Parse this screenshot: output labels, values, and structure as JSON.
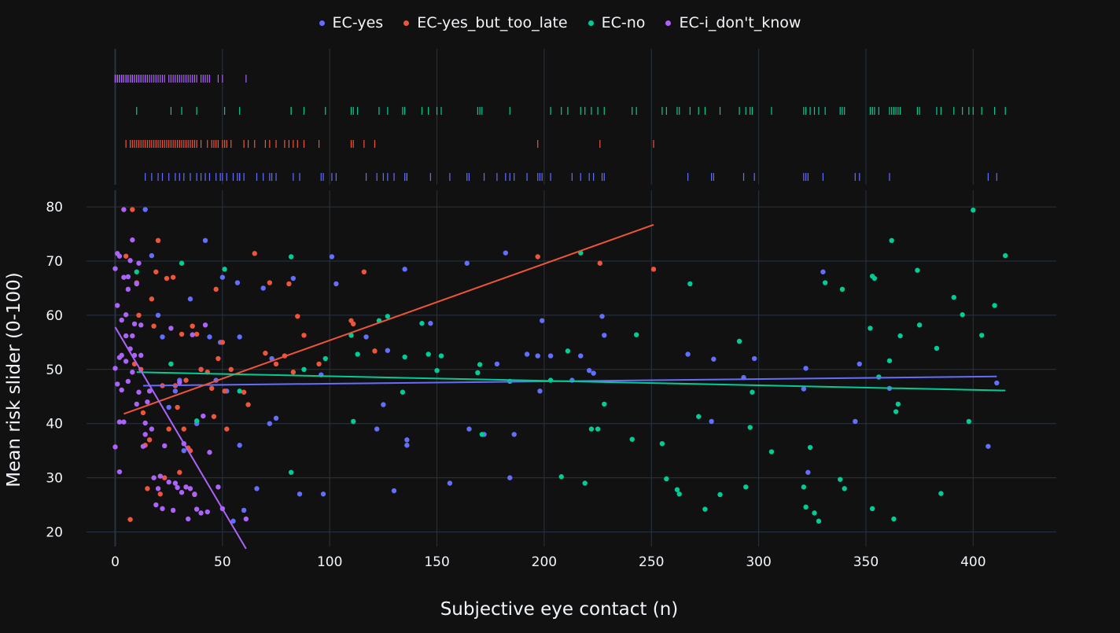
{
  "chart_data": {
    "type": "scatter",
    "title": "",
    "xlabel": "Subjective eye contact (n)",
    "ylabel": "Mean risk slider (0-100)",
    "xlim": [
      -10,
      440
    ],
    "ylim": [
      13,
      84
    ],
    "x_ticks": [
      0,
      50,
      100,
      150,
      200,
      250,
      300,
      350,
      400
    ],
    "y_ticks": [
      20,
      30,
      40,
      50,
      60,
      70,
      80
    ],
    "grid": true,
    "legend_position": "top",
    "marginal": "rug",
    "series": [
      {
        "name": "EC-yes",
        "color": "#636efa",
        "trendline": [
          [
            13,
            47.0
          ],
          [
            411,
            48.7
          ]
        ],
        "points": [
          [
            14,
            79.5
          ],
          [
            17,
            71
          ],
          [
            20,
            60
          ],
          [
            22,
            56
          ],
          [
            25,
            43
          ],
          [
            28,
            46
          ],
          [
            30,
            48
          ],
          [
            32,
            35
          ],
          [
            35,
            63
          ],
          [
            38,
            40
          ],
          [
            40,
            50
          ],
          [
            42,
            73.8
          ],
          [
            44,
            56
          ],
          [
            47,
            48
          ],
          [
            49,
            55
          ],
          [
            50,
            67
          ],
          [
            52,
            46
          ],
          [
            55,
            22
          ],
          [
            57,
            66
          ],
          [
            58,
            56
          ],
          [
            58,
            36
          ],
          [
            60,
            24
          ],
          [
            66,
            28
          ],
          [
            69,
            65
          ],
          [
            72,
            40
          ],
          [
            73,
            52
          ],
          [
            75,
            41
          ],
          [
            83,
            66.8
          ],
          [
            86,
            27
          ],
          [
            96,
            49
          ],
          [
            97,
            27
          ],
          [
            101,
            70.8
          ],
          [
            103,
            65.8
          ],
          [
            117,
            56
          ],
          [
            122,
            39
          ],
          [
            125,
            43.5
          ],
          [
            127,
            53.5
          ],
          [
            130,
            27.6
          ],
          [
            135,
            68.5
          ],
          [
            136,
            36
          ],
          [
            136,
            37
          ],
          [
            147,
            58.5
          ],
          [
            156,
            29
          ],
          [
            164,
            69.6
          ],
          [
            165,
            39
          ],
          [
            172,
            38
          ],
          [
            178,
            51
          ],
          [
            182,
            71.5
          ],
          [
            184,
            30
          ],
          [
            186,
            38
          ],
          [
            192,
            52.8
          ],
          [
            197,
            52.5
          ],
          [
            198,
            46
          ],
          [
            199,
            59
          ],
          [
            203,
            52.5
          ],
          [
            213,
            48
          ],
          [
            217,
            52.5
          ],
          [
            221,
            49.8
          ],
          [
            223,
            49.3
          ],
          [
            227,
            59.8
          ],
          [
            228,
            56.3
          ],
          [
            267,
            52.8
          ],
          [
            278,
            40.4
          ],
          [
            279,
            51.9
          ],
          [
            293,
            48.5
          ],
          [
            298,
            52
          ],
          [
            321,
            46.4
          ],
          [
            322,
            50.2
          ],
          [
            323,
            31
          ],
          [
            330,
            68
          ],
          [
            345,
            40.4
          ],
          [
            347,
            51
          ],
          [
            361,
            46.5
          ],
          [
            407,
            35.8
          ],
          [
            411,
            47.5
          ]
        ]
      },
      {
        "name": "EC-yes_but_too_late",
        "color": "#ef553b",
        "trendline": [
          [
            4,
            41.8
          ],
          [
            251,
            76.7
          ]
        ],
        "points": [
          [
            5,
            70.9
          ],
          [
            7,
            22.3
          ],
          [
            8,
            79.5
          ],
          [
            9,
            51
          ],
          [
            10,
            66
          ],
          [
            11,
            60
          ],
          [
            12,
            50
          ],
          [
            13,
            42
          ],
          [
            14,
            36
          ],
          [
            15,
            28
          ],
          [
            16,
            37
          ],
          [
            17,
            63
          ],
          [
            18,
            58
          ],
          [
            19,
            68
          ],
          [
            20,
            73.8
          ],
          [
            21,
            27
          ],
          [
            22,
            47
          ],
          [
            23,
            30
          ],
          [
            24,
            66.8
          ],
          [
            25,
            39
          ],
          [
            26,
            51
          ],
          [
            27,
            67
          ],
          [
            28,
            47
          ],
          [
            29,
            43
          ],
          [
            30,
            31
          ],
          [
            31,
            56.5
          ],
          [
            32,
            39
          ],
          [
            33,
            48
          ],
          [
            34,
            35.5
          ],
          [
            35,
            35
          ],
          [
            36,
            58
          ],
          [
            37,
            27
          ],
          [
            38,
            56.5
          ],
          [
            40,
            50
          ],
          [
            43,
            49.5
          ],
          [
            45,
            46.5
          ],
          [
            46,
            41.3
          ],
          [
            47,
            64.8
          ],
          [
            48,
            52
          ],
          [
            50,
            55
          ],
          [
            51,
            46
          ],
          [
            52,
            39
          ],
          [
            54,
            50
          ],
          [
            60,
            45.8
          ],
          [
            62,
            43.5
          ],
          [
            65,
            71.4
          ],
          [
            70,
            53
          ],
          [
            72,
            66
          ],
          [
            75,
            51
          ],
          [
            79,
            52.5
          ],
          [
            81,
            65.8
          ],
          [
            83,
            49.5
          ],
          [
            85,
            59.8
          ],
          [
            88,
            56.3
          ],
          [
            95,
            51
          ],
          [
            110,
            59
          ],
          [
            111,
            58.4
          ],
          [
            116,
            68
          ],
          [
            121,
            53.4
          ],
          [
            197,
            70.8
          ],
          [
            226,
            69.6
          ],
          [
            251,
            68.5
          ]
        ]
      },
      {
        "name": "EC-no",
        "color": "#00cc96",
        "trendline": [
          [
            10,
            49.5
          ],
          [
            415,
            46.1
          ]
        ],
        "points": [
          [
            10,
            68
          ],
          [
            26,
            51
          ],
          [
            31,
            69.6
          ],
          [
            38,
            40.5
          ],
          [
            51,
            68.5
          ],
          [
            58,
            46
          ],
          [
            82,
            70.8
          ],
          [
            82,
            31
          ],
          [
            88,
            50
          ],
          [
            98,
            52
          ],
          [
            110,
            56.3
          ],
          [
            111,
            40.4
          ],
          [
            113,
            52.8
          ],
          [
            123,
            59
          ],
          [
            127,
            59.8
          ],
          [
            134,
            45.8
          ],
          [
            135,
            52.3
          ],
          [
            143,
            58.5
          ],
          [
            146,
            52.8
          ],
          [
            150,
            49.8
          ],
          [
            152,
            52.5
          ],
          [
            169,
            49.4
          ],
          [
            170,
            50.9
          ],
          [
            171,
            38
          ],
          [
            184,
            47.8
          ],
          [
            203,
            48
          ],
          [
            208,
            30.2
          ],
          [
            211,
            53.4
          ],
          [
            217,
            71.5
          ],
          [
            219,
            29
          ],
          [
            222,
            39
          ],
          [
            225,
            39
          ],
          [
            228,
            43.6
          ],
          [
            241,
            37.1
          ],
          [
            243,
            56.4
          ],
          [
            255,
            36.3
          ],
          [
            257,
            29.8
          ],
          [
            262,
            27.8
          ],
          [
            263,
            27
          ],
          [
            268,
            65.8
          ],
          [
            272,
            41.3
          ],
          [
            275,
            24.2
          ],
          [
            282,
            26.9
          ],
          [
            291,
            55.2
          ],
          [
            294,
            28.3
          ],
          [
            296,
            39.3
          ],
          [
            297,
            45.8
          ],
          [
            306,
            34.8
          ],
          [
            321,
            28.3
          ],
          [
            322,
            24.6
          ],
          [
            324,
            35.6
          ],
          [
            326,
            23.5
          ],
          [
            328,
            22
          ],
          [
            331,
            66
          ],
          [
            338,
            29.7
          ],
          [
            339,
            64.8
          ],
          [
            340,
            28
          ],
          [
            352,
            57.6
          ],
          [
            353,
            24.3
          ],
          [
            353,
            67.2
          ],
          [
            354,
            66.8
          ],
          [
            356,
            48.6
          ],
          [
            361,
            51.6
          ],
          [
            362,
            73.8
          ],
          [
            363,
            22.4
          ],
          [
            364,
            42.2
          ],
          [
            365,
            43.6
          ],
          [
            366,
            56.2
          ],
          [
            374,
            68.3
          ],
          [
            375,
            58.2
          ],
          [
            383,
            53.9
          ],
          [
            385,
            27.1
          ],
          [
            391,
            63.3
          ],
          [
            395,
            60.1
          ],
          [
            398,
            40.4
          ],
          [
            400,
            79.4
          ],
          [
            404,
            56.3
          ],
          [
            410,
            61.8
          ],
          [
            415,
            71
          ]
        ]
      },
      {
        "name": "EC-i_don't_know",
        "color": "#ab63fa",
        "trendline": [
          [
            0,
            57.8
          ],
          [
            61,
            16.9
          ]
        ],
        "points": [
          [
            0,
            35.7
          ],
          [
            0,
            68.6
          ],
          [
            0,
            50.2
          ],
          [
            1,
            47.3
          ],
          [
            1,
            61.8
          ],
          [
            1,
            71.4
          ],
          [
            2,
            40.3
          ],
          [
            2,
            31.1
          ],
          [
            2,
            70.9
          ],
          [
            2,
            52.2
          ],
          [
            3,
            59.1
          ],
          [
            3,
            46.2
          ],
          [
            3,
            52.6
          ],
          [
            4,
            79.5
          ],
          [
            4,
            67
          ],
          [
            4,
            40.3
          ],
          [
            5,
            60.1
          ],
          [
            5,
            56.2
          ],
          [
            5,
            51.5
          ],
          [
            6,
            64.8
          ],
          [
            6,
            47.8
          ],
          [
            6,
            67.1
          ],
          [
            7,
            53.8
          ],
          [
            7,
            70.1
          ],
          [
            8,
            73.9
          ],
          [
            8,
            56.2
          ],
          [
            8,
            49.5
          ],
          [
            9,
            58.4
          ],
          [
            9,
            52.6
          ],
          [
            10,
            65.8
          ],
          [
            10,
            43.6
          ],
          [
            11,
            69.6
          ],
          [
            11,
            45.8
          ],
          [
            12,
            52.6
          ],
          [
            12,
            58.2
          ],
          [
            13,
            35.8
          ],
          [
            14,
            38
          ],
          [
            14,
            40.1
          ],
          [
            15,
            44
          ],
          [
            16,
            46
          ],
          [
            17,
            39
          ],
          [
            18,
            30
          ],
          [
            19,
            25
          ],
          [
            20,
            28
          ],
          [
            21,
            30.3
          ],
          [
            22,
            24.3
          ],
          [
            23,
            35.9
          ],
          [
            25,
            29.2
          ],
          [
            26,
            57.6
          ],
          [
            27,
            24
          ],
          [
            28,
            29
          ],
          [
            29,
            28.2
          ],
          [
            30,
            47.6
          ],
          [
            31,
            27.3
          ],
          [
            32,
            36.3
          ],
          [
            33,
            28.3
          ],
          [
            34,
            22.4
          ],
          [
            35,
            28
          ],
          [
            36,
            56.4
          ],
          [
            37,
            26.9
          ],
          [
            38,
            24.2
          ],
          [
            40,
            23.5
          ],
          [
            41,
            41.4
          ],
          [
            42,
            58.2
          ],
          [
            43,
            23.7
          ],
          [
            44,
            34.7
          ],
          [
            48,
            28.3
          ],
          [
            50,
            24.3
          ],
          [
            61,
            22.4
          ]
        ]
      }
    ]
  }
}
